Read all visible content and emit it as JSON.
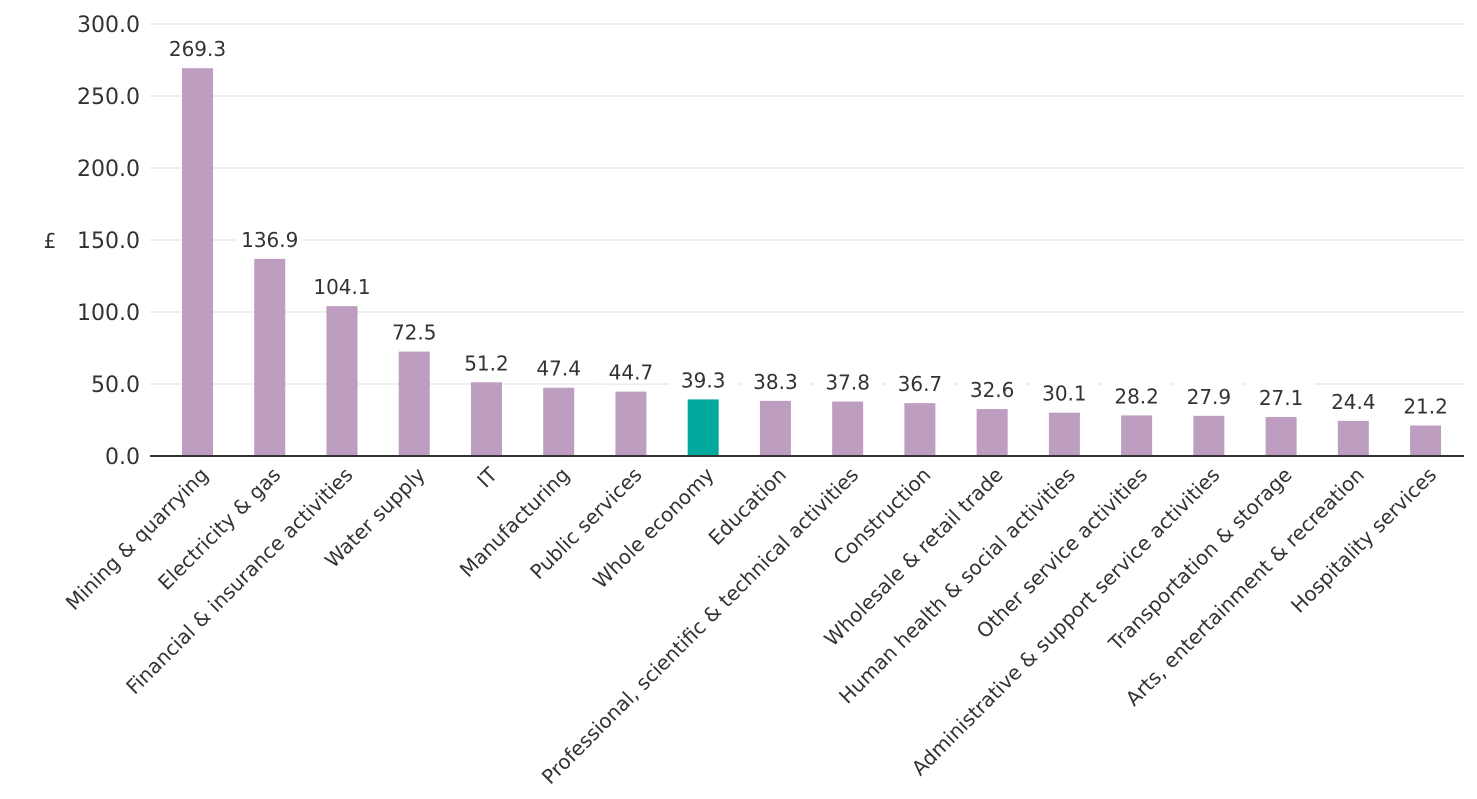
{
  "chart_data": {
    "type": "bar",
    "ylabel": "£",
    "ylim": [
      0,
      300
    ],
    "yticks": [
      "0.0",
      "50.0",
      "100.0",
      "150.0",
      "200.0",
      "250.0",
      "300.0"
    ],
    "grid": true,
    "categories": [
      "Mining & quarrying",
      "Electricity & gas",
      "Financial & insurance activities",
      "Water supply",
      "IT",
      "Manufacturing",
      "Public services",
      "Whole economy",
      "Education",
      "Professional, scientific & technical activities",
      "Construction",
      "Wholesale & retail trade",
      "Human health & social activities",
      "Other service activities",
      "Administrative & support service activities",
      "Transportation & storage",
      "Arts, entertainment & recreation",
      "Hospitality services"
    ],
    "values": [
      269.3,
      136.9,
      104.1,
      72.5,
      51.2,
      47.4,
      44.7,
      39.3,
      38.3,
      37.8,
      36.7,
      32.6,
      30.1,
      28.2,
      27.9,
      27.1,
      24.4,
      21.2
    ],
    "labels": [
      "269.3",
      "136.9",
      "104.1",
      "72.5",
      "51.2",
      "47.4",
      "44.7",
      "39.3",
      "38.3",
      "37.8",
      "36.7",
      "32.6",
      "30.1",
      "28.2",
      "27.9",
      "27.1",
      "24.4",
      "21.2"
    ],
    "highlight": "Whole economy",
    "colors": {
      "bar": "#bd9dc0",
      "highlight": "#00a99d",
      "grid": "#dddddd",
      "axis": "#333333"
    }
  }
}
